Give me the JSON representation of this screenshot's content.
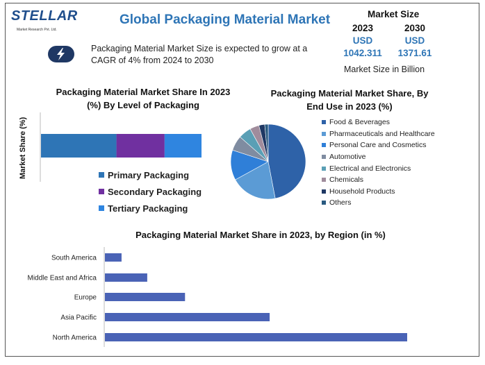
{
  "header": {
    "logo_text": "STELLAR",
    "logo_subtext": "Market Research Pvt. Ltd.",
    "title": "Global Packaging Material Market",
    "description": "Packaging Material Market Size is expected to grow at a CAGR of 4% from 2024 to 2030"
  },
  "market_size": {
    "heading": "Market Size",
    "columns": [
      {
        "year": "2023",
        "currency": "USD",
        "value": "1042.311"
      },
      {
        "year": "2030",
        "currency": "USD",
        "value": "1371.61"
      }
    ],
    "footnote": "Market Size in Billion"
  },
  "colors": {
    "primary": "#2e75b6",
    "secondary": "#7030a0",
    "tertiary": "#2f85e0",
    "region_bar": "#4a63b6",
    "dark_navy": "#1f3864"
  },
  "chart_data": [
    {
      "type": "bar",
      "orientation": "horizontal-stacked",
      "title": "Packaging Material Market Share In 2023 (%) By Level of Packaging",
      "ylabel": "Market Share (%)",
      "series": [
        {
          "name": "Primary Packaging",
          "values": [
            47
          ],
          "color": "#2e75b6"
        },
        {
          "name": "Secondary Packaging",
          "values": [
            30
          ],
          "color": "#7030a0"
        },
        {
          "name": "Tertiary Packaging",
          "values": [
            23
          ],
          "color": "#2f85e0"
        }
      ],
      "legend": "bottom"
    },
    {
      "type": "pie",
      "title": "Packaging Material Market Share, By End Use in 2023 (%)",
      "categories": [
        "Food & Beverages",
        "Pharmaceuticals and Healthcare",
        "Personal Care and Cosmetics",
        "Automotive",
        "Electrical and Electronics",
        "Chemicals",
        "Household Products",
        "Others"
      ],
      "values": [
        47,
        20,
        13,
        6.5,
        5.5,
        4,
        2.5,
        1.5
      ],
      "colors": [
        "#2e62a8",
        "#5b9bd5",
        "#2f7fd8",
        "#7f8ca1",
        "#5a9fb5",
        "#a08c9c",
        "#1f3864",
        "#2a5a80"
      ],
      "legend": "right"
    },
    {
      "type": "bar",
      "orientation": "horizontal",
      "title": "Packaging Material Market Share in 2023, by Region (in %)",
      "categories": [
        "South America",
        "Middle East and Africa",
        "Europe",
        "Asia Pacific",
        "North America"
      ],
      "values": [
        5.5,
        14,
        26.5,
        54.5,
        100
      ],
      "color": "#4a63b6"
    }
  ]
}
